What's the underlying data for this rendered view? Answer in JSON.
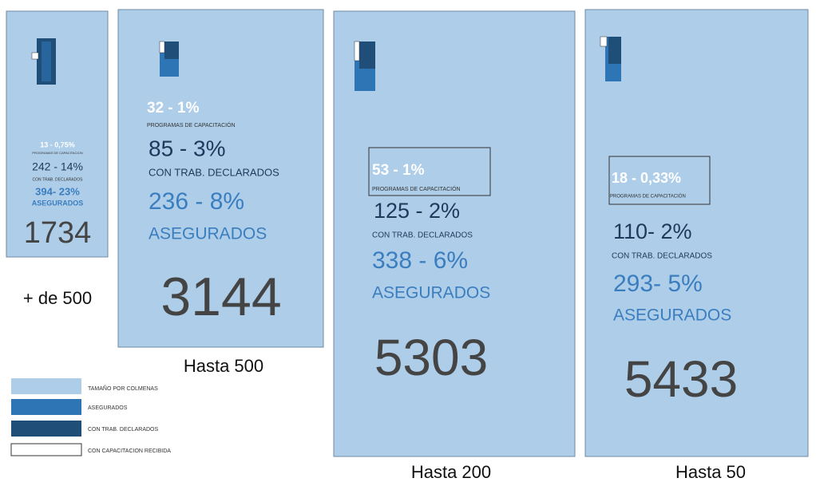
{
  "panels": [
    {
      "caption": "+ de 500",
      "total": "1734",
      "capacitacion": "13 - 0,75%",
      "capacitacion_label": "PROGRAMAS DE CAPACITACION",
      "declarados": "242 - 14%",
      "declarados_label": "CON TRAB. DECLARADOS",
      "asegurados": "394- 23%",
      "asegurados_label": "ASEGURADOS"
    },
    {
      "caption": "Hasta 500",
      "total": "3144",
      "capacitacion": "32 - 1%",
      "capacitacion_label": "PROGRAMAS DE CAPACITACIÓN",
      "declarados": "85 - 3%",
      "declarados_label": "CON TRAB. DECLARADOS",
      "asegurados": "236 - 8%",
      "asegurados_label": "ASEGURADOS"
    },
    {
      "caption": "Hasta 200",
      "total": "5303",
      "capacitacion": "53 - 1%",
      "capacitacion_label": "PROGRAMAS DE CAPACITACIÓN",
      "declarados": "125 - 2%",
      "declarados_label": "CON TRAB. DECLARADOS",
      "asegurados": "338 - 6%",
      "asegurados_label": "ASEGURADOS"
    },
    {
      "caption": "Hasta 50",
      "total": "5433",
      "capacitacion": "18 - 0,33%",
      "capacitacion_label": "PROGRAMAS DE CAPACITACIÓN",
      "declarados": "110- 2%",
      "declarados_label": "CON TRAB. DECLARADOS",
      "asegurados": "293- 5%",
      "asegurados_label": "ASEGURADOS"
    }
  ],
  "legend": [
    "TAMAÑO POR COLMENAS",
    "ASEGURADOS",
    "CON TRAB. DECLARADOS",
    "CON CAPACITACION RECIBIDA"
  ]
}
